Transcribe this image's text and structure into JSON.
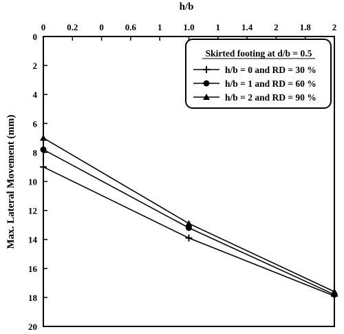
{
  "chart_data": {
    "type": "line",
    "title": "",
    "xlabel": "h/b",
    "ylabel": "Max. Lateral Movement (mm)",
    "x_axis_position": "top",
    "y_axis_inverted": true,
    "xlim": [
      0,
      2
    ],
    "ylim": [
      0,
      20
    ],
    "x_tick_values": [
      0,
      0.2,
      0.4,
      0.6,
      0.8,
      1.0,
      1.2,
      1.4,
      1.6,
      1.8,
      2
    ],
    "x_tick_labels": [
      "0",
      "0.2",
      "0",
      "0.6",
      "1",
      "1.0",
      "1",
      "1.4",
      "2",
      "1.8",
      "2"
    ],
    "y_tick_values": [
      0,
      2,
      4,
      6,
      8,
      10,
      12,
      14,
      16,
      18,
      20
    ],
    "y_tick_labels": [
      "0",
      "2",
      "4",
      "6",
      "8",
      "10",
      "12",
      "14",
      "16",
      "18",
      "20"
    ],
    "grid": false,
    "legend_position": "top-right",
    "legend_title": "Skirted footing at d/b = 0.5",
    "x": [
      0,
      1,
      2
    ],
    "series": [
      {
        "name": "h/b = 0 and RD = 30 %",
        "marker": "plus",
        "values": [
          9.0,
          13.9,
          17.9
        ]
      },
      {
        "name": "h/b = 1 and RD = 60 %",
        "marker": "circle",
        "values": [
          7.8,
          13.2,
          17.8
        ]
      },
      {
        "name": "h/b = 2 and RD = 90 %",
        "marker": "triangle",
        "values": [
          7.0,
          12.9,
          17.6
        ]
      }
    ]
  }
}
